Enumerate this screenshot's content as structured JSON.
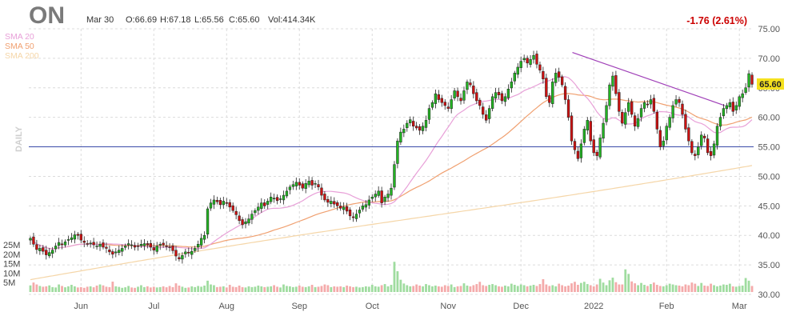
{
  "header": {
    "ticker": "ON",
    "date": "Mar 30",
    "open": "O:66.69",
    "high": "H:67.18",
    "low": "L:65.56",
    "close": "C:65.60",
    "volume": "Vol:414.34K",
    "change": "-1.76 (2.61%)",
    "change_color": "#cc0000"
  },
  "legend": {
    "sma20": "SMA 20",
    "sma50": "SMA 50",
    "sma200": "SMA 200",
    "sma20_color": "#e8a0d8",
    "sma50_color": "#f0a070",
    "sma200_color": "#f5d6a8"
  },
  "side_label": "DAILY",
  "last_price_tag": "65.60",
  "chart_data": {
    "type": "candlestick",
    "x_labels": [
      "Jun",
      "Jul",
      "Aug",
      "Sep",
      "Oct",
      "Nov",
      "Dec",
      "2022",
      "Feb",
      "Mar"
    ],
    "y_ticks": [
      "75.00",
      "70.00",
      "65.00",
      "60.00",
      "55.00",
      "50.00",
      "45.00",
      "40.00",
      "35.00",
      "30.00"
    ],
    "volume_ticks": [
      "25M",
      "20M",
      "15M",
      "10M",
      "5M"
    ],
    "ylim": [
      30,
      75
    ],
    "horizontal_line": 55.0,
    "trendline": [
      [
        0.75,
        71.0
      ],
      [
        0.96,
        62.0
      ]
    ],
    "colors": {
      "up": "#22b322",
      "down": "#cc1111",
      "vol_up": "#9fdc9f",
      "vol_down": "#f4aaaa"
    },
    "closes": [
      39.5,
      38.5,
      37.6,
      37.8,
      37.3,
      36.7,
      37.1,
      37.5,
      38.2,
      38.8,
      38.4,
      38.9,
      39.3,
      39.6,
      40.1,
      40.0,
      39.2,
      38.8,
      38.5,
      38.7,
      38.4,
      38.2,
      38.5,
      38.0,
      37.8,
      37.2,
      36.8,
      37.2,
      37.5,
      37.8,
      38.2,
      38.6,
      38.4,
      38.0,
      38.2,
      38.5,
      38.6,
      38.4,
      38.0,
      37.5,
      38.2,
      38.5,
      38.4,
      38.2,
      38.0,
      37.4,
      36.5,
      36.0,
      36.6,
      37.2,
      37.0,
      37.3,
      37.8,
      38.5,
      39.5,
      40.0,
      44.5,
      45.5,
      46.0,
      45.7,
      45.2,
      45.8,
      45.5,
      44.8,
      44.2,
      43.5,
      42.5,
      41.8,
      42.3,
      42.8,
      43.6,
      44.2,
      44.8,
      45.5,
      45.0,
      45.8,
      46.5,
      46.3,
      45.9,
      46.2,
      46.8,
      47.5,
      48.2,
      48.6,
      49.0,
      48.5,
      48.0,
      48.8,
      49.2,
      48.5,
      48.8,
      48.2,
      46.8,
      46.0,
      45.6,
      45.8,
      45.3,
      45.0,
      44.6,
      44.8,
      44.1,
      43.3,
      43.0,
      43.6,
      44.3,
      45.0,
      45.2,
      46.0,
      46.5,
      47.0,
      47.5,
      45.5,
      46.5,
      47.0,
      48.0,
      52.0,
      56.0,
      57.5,
      58.0,
      59.0,
      59.6,
      58.5,
      58.2,
      57.8,
      58.5,
      59.5,
      61.5,
      62.5,
      64.0,
      63.0,
      62.5,
      62.0,
      61.5,
      63.0,
      64.5,
      63.5,
      62.8,
      64.5,
      66.0,
      65.5,
      64.0,
      62.8,
      62.0,
      60.5,
      59.5,
      61.5,
      63.5,
      64.2,
      63.8,
      62.8,
      63.5,
      64.8,
      66.0,
      67.5,
      68.5,
      69.5,
      70.0,
      69.2,
      69.8,
      70.5,
      69.0,
      68.0,
      66.5,
      63.5,
      62.5,
      66.0,
      67.5,
      66.8,
      65.5,
      63.0,
      60.0,
      56.0,
      54.5,
      53.0,
      55.5,
      58.0,
      59.5,
      56.0,
      54.0,
      53.5,
      56.5,
      59.0,
      62.0,
      65.5,
      67.0,
      64.0,
      61.0,
      59.0,
      60.8,
      62.5,
      60.5,
      58.5,
      59.8,
      61.5,
      62.5,
      62.2,
      63.0,
      61.0,
      58.0,
      55.0,
      56.0,
      58.5,
      60.0,
      62.0,
      63.0,
      62.5,
      60.5,
      58.0,
      56.0,
      54.0,
      53.5,
      55.0,
      57.0,
      56.5,
      54.0,
      53.5,
      55.5,
      58.5,
      60.0,
      61.5,
      62.0,
      62.5,
      61.0,
      62.0,
      63.5,
      64.0,
      65.0,
      67.4,
      65.6
    ],
    "volumes": [
      3.5,
      5.0,
      4.0,
      3.2,
      2.8,
      3.0,
      3.5,
      2.6,
      2.4,
      4.0,
      3.2,
      2.5,
      3.0,
      3.8,
      3.0,
      2.4,
      2.6,
      2.2,
      2.8,
      3.0,
      2.5,
      3.4,
      4.0,
      3.5,
      2.8,
      2.6,
      5.5,
      3.0,
      2.7,
      2.2,
      2.5,
      3.2,
      2.4,
      2.2,
      2.8,
      3.6,
      2.6,
      3.0,
      2.4,
      2.8,
      2.4,
      2.6,
      3.0,
      2.5,
      3.2,
      2.6,
      4.6,
      3.4,
      2.8,
      2.2,
      2.4,
      3.0,
      2.6,
      3.2,
      2.8,
      3.4,
      6.0,
      4.0,
      3.6,
      2.6,
      2.8,
      3.0,
      2.4,
      3.8,
      2.8,
      2.6,
      3.4,
      2.6,
      2.4,
      3.0,
      2.6,
      2.8,
      3.4,
      3.0,
      2.6,
      2.8,
      3.0,
      3.6,
      2.8,
      2.4,
      4.0,
      3.2,
      3.0,
      2.6,
      2.8,
      3.4,
      2.8,
      2.6,
      3.0,
      3.8,
      2.6,
      2.8,
      3.2,
      4.0,
      3.6,
      2.6,
      3.0,
      2.8,
      3.0,
      2.6,
      3.4,
      3.0,
      2.6,
      2.8,
      2.4,
      2.6,
      3.0,
      2.8,
      3.8,
      3.0,
      2.8,
      3.6,
      4.2,
      3.0,
      3.8,
      16.0,
      11.0,
      6.5,
      4.5,
      3.6,
      3.0,
      3.2,
      4.0,
      3.4,
      3.0,
      4.2,
      3.6,
      3.0,
      3.4,
      3.0,
      2.8,
      3.6,
      3.2,
      4.0,
      2.6,
      3.0,
      3.2,
      4.6,
      3.4,
      3.0,
      3.6,
      4.2,
      5.4,
      3.6,
      3.2,
      3.8,
      4.2,
      3.6,
      3.0,
      2.8,
      3.4,
      3.0,
      4.4,
      3.8,
      3.2,
      4.0,
      3.6,
      3.0,
      3.4,
      3.8,
      3.2,
      4.2,
      6.8,
      4.0,
      3.2,
      3.6,
      3.0,
      4.4,
      3.6,
      3.0,
      3.4,
      4.6,
      5.4,
      3.8,
      4.8,
      5.4,
      4.2,
      3.6,
      3.0,
      4.0,
      7.0,
      5.0,
      3.6,
      6.2,
      7.6,
      5.2,
      4.0,
      4.0,
      12.0,
      9.6,
      5.6,
      4.6,
      3.6,
      4.8,
      3.8,
      3.2,
      4.2,
      5.0,
      3.8,
      3.2,
      3.0,
      3.6,
      4.4,
      4.0,
      3.6,
      3.4,
      3.0,
      4.0,
      3.6,
      5.0,
      4.4,
      3.2,
      4.8,
      3.4,
      3.2,
      4.4,
      3.6,
      3.0,
      3.4,
      4.0,
      3.8,
      4.4,
      3.0,
      2.8,
      3.2,
      3.4,
      7.4,
      6.0,
      3.2,
      3.0,
      3.6,
      3.2
    ]
  }
}
